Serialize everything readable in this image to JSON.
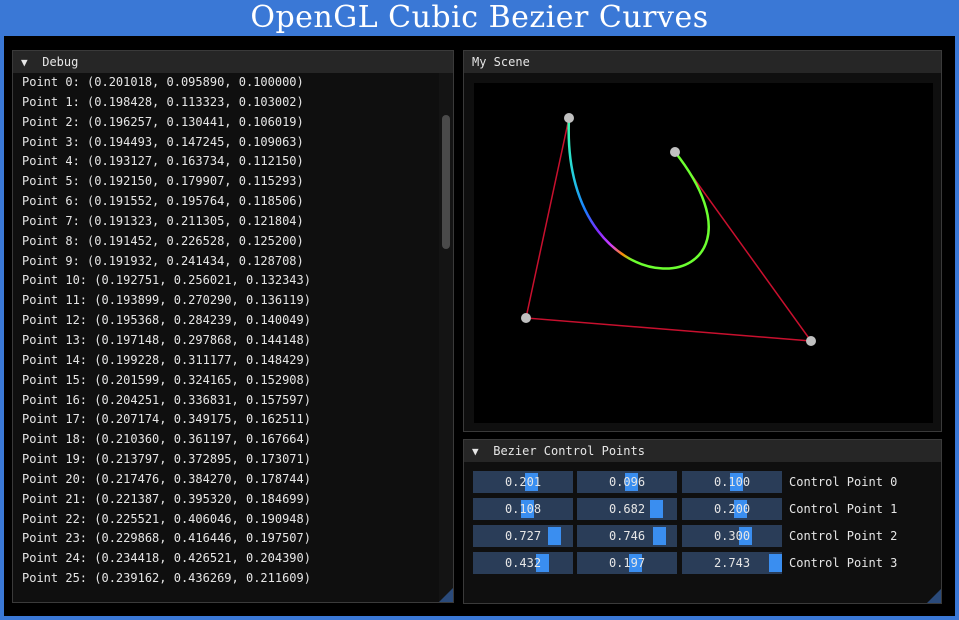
{
  "window_title": "OpenGL Cubic Bezier Curves",
  "debug": {
    "title": "Debug",
    "points": [
      "Point 0: (0.201018, 0.095890, 0.100000)",
      "Point 1: (0.198428, 0.113323, 0.103002)",
      "Point 2: (0.196257, 0.130441, 0.106019)",
      "Point 3: (0.194493, 0.147245, 0.109063)",
      "Point 4: (0.193127, 0.163734, 0.112150)",
      "Point 5: (0.192150, 0.179907, 0.115293)",
      "Point 6: (0.191552, 0.195764, 0.118506)",
      "Point 7: (0.191323, 0.211305, 0.121804)",
      "Point 8: (0.191452, 0.226528, 0.125200)",
      "Point 9: (0.191932, 0.241434, 0.128708)",
      "Point 10: (0.192751, 0.256021, 0.132343)",
      "Point 11: (0.193899, 0.270290, 0.136119)",
      "Point 12: (0.195368, 0.284239, 0.140049)",
      "Point 13: (0.197148, 0.297868, 0.144148)",
      "Point 14: (0.199228, 0.311177, 0.148429)",
      "Point 15: (0.201599, 0.324165, 0.152908)",
      "Point 16: (0.204251, 0.336831, 0.157597)",
      "Point 17: (0.207174, 0.349175, 0.162511)",
      "Point 18: (0.210360, 0.361197, 0.167664)",
      "Point 19: (0.213797, 0.372895, 0.173071)",
      "Point 20: (0.217476, 0.384270, 0.178744)",
      "Point 21: (0.221387, 0.395320, 0.184699)",
      "Point 22: (0.225521, 0.406046, 0.190948)",
      "Point 23: (0.229868, 0.416446, 0.197507)",
      "Point 24: (0.234418, 0.426521, 0.204390)",
      "Point 25: (0.239162, 0.436269, 0.211609)"
    ]
  },
  "scene": {
    "title": "My Scene"
  },
  "controls": {
    "title": "Bezier Control Points",
    "rows": [
      {
        "label": "Control Point 0",
        "values": [
          "0.201",
          "0.096",
          "0.100"
        ],
        "fill": [
          0.6,
          0.55,
          0.55
        ]
      },
      {
        "label": "Control Point 1",
        "values": [
          "0.108",
          "0.682",
          "0.200"
        ],
        "fill": [
          0.55,
          0.84,
          0.6
        ]
      },
      {
        "label": "Control Point 2",
        "values": [
          "0.727",
          "0.746",
          "0.300"
        ],
        "fill": [
          0.86,
          0.87,
          0.65
        ]
      },
      {
        "label": "Control Point 3",
        "values": [
          "0.432",
          "0.197",
          "2.743"
        ],
        "fill": [
          0.72,
          0.6,
          1.0
        ]
      }
    ]
  },
  "colors": {
    "title_bar": "#3a78d6",
    "polygon": "#c8102e",
    "slider_grab": "#3a8ef0",
    "slider_bg": "#2a3d58",
    "control_point": "#c0c0c0"
  }
}
